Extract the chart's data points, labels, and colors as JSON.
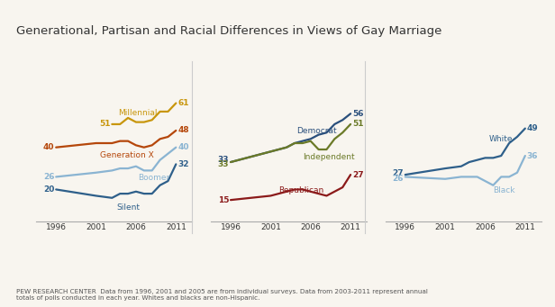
{
  "title": "Generational, Partisan and Racial Differences in Views of Gay Marriage",
  "footer": "PEW RESEARCH CENTER  Data from 1996, 2001 and 2005 are from individual surveys. Data from 2003-2011 represent annual\ntotals of polls conducted in each year. Whites and blacks are non-Hispanic.",
  "years": [
    1996,
    2001,
    2003,
    2004,
    2005,
    2006,
    2007,
    2008,
    2009,
    2010,
    2011
  ],
  "panel1": {
    "series": {
      "Millennial": {
        "values": [
          null,
          null,
          51,
          51,
          54,
          52,
          52,
          53,
          57,
          57,
          61
        ],
        "color": "#c8960c"
      },
      "Generation X": {
        "values": [
          40,
          42,
          42,
          43,
          43,
          41,
          40,
          41,
          44,
          45,
          48
        ],
        "color": "#b5470b"
      },
      "Boomer": {
        "values": [
          26,
          28,
          29,
          30,
          30,
          31,
          29,
          29,
          34,
          37,
          40
        ],
        "color": "#8ab4d2"
      },
      "Silent": {
        "values": [
          20,
          17,
          16,
          18,
          18,
          19,
          18,
          18,
          22,
          24,
          32
        ],
        "color": "#2e5f8a"
      }
    },
    "ylim": [
      5,
      75
    ]
  },
  "panel2": {
    "series": {
      "Democrat": {
        "values": [
          33,
          38,
          40,
          42,
          43,
          44,
          46,
          47,
          51,
          53,
          56
        ],
        "color": "#2a4f7c"
      },
      "Independent": {
        "values": [
          33,
          38,
          40,
          42,
          42,
          43,
          39,
          39,
          44,
          47,
          51
        ],
        "color": "#6b7a28"
      },
      "Republican": {
        "values": [
          15,
          17,
          19,
          20,
          20,
          19,
          18,
          17,
          19,
          21,
          27
        ],
        "color": "#8b1a1a"
      }
    },
    "ylim": [
      5,
      75
    ]
  },
  "panel3": {
    "series": {
      "White": {
        "values": [
          27,
          30,
          31,
          33,
          34,
          35,
          35,
          36,
          42,
          45,
          49
        ],
        "color": "#2e5f8a"
      },
      "Black": {
        "values": [
          26,
          25,
          26,
          26,
          26,
          24,
          22,
          26,
          26,
          28,
          36
        ],
        "color": "#8ab4d2"
      }
    },
    "ylim": [
      5,
      75
    ]
  },
  "bg_color": "#f8f5ef",
  "axis_color": "#aaaaaa",
  "text_color": "#333333",
  "x_ticks": [
    1996,
    2001,
    2006,
    2011
  ]
}
